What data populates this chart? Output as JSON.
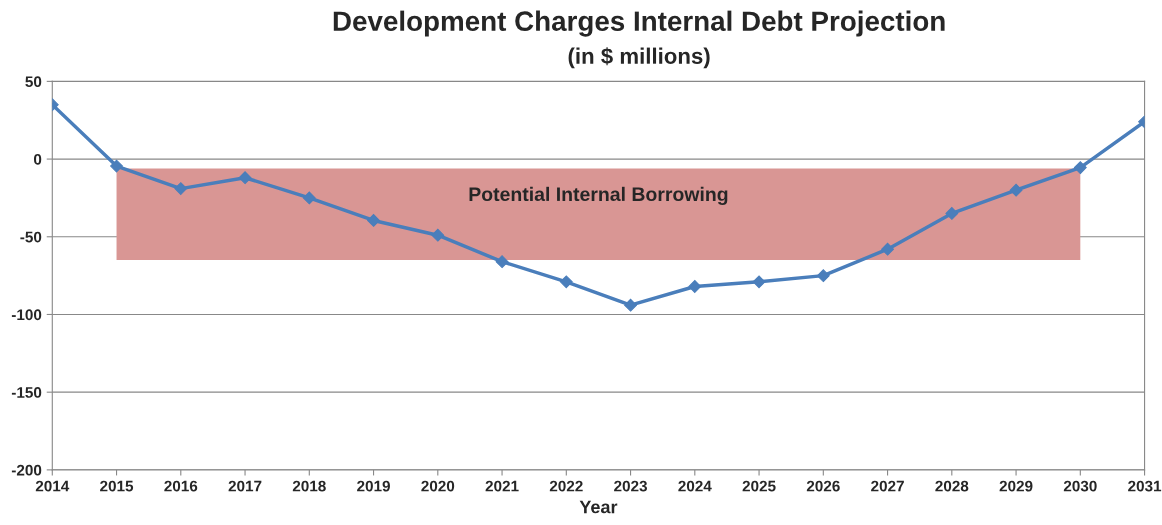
{
  "chart_data": {
    "type": "line",
    "title": "Development Charges Internal Debt Projection",
    "subtitle": "(in $ millions)",
    "xlabel": "Year",
    "categories": [
      "2014",
      "2015",
      "2016",
      "2017",
      "2018",
      "2019",
      "2020",
      "2021",
      "2022",
      "2023",
      "2024",
      "2025",
      "2026",
      "2027",
      "2028",
      "2029",
      "2030",
      "2031"
    ],
    "series": [
      {
        "color": "#4a7ebb",
        "values": [
          35,
          -4.5,
          -19,
          -12,
          -25,
          -39.5,
          -49,
          -66,
          -79,
          -94,
          -82,
          -79,
          -75,
          -58,
          -35,
          -20,
          -5.5,
          24
        ]
      }
    ],
    "ylim": [
      -200,
      50
    ],
    "yticks": [
      -200,
      -150,
      -100,
      -50,
      0,
      50
    ],
    "grid": "y",
    "marker": "diamond",
    "line_style": "solid",
    "bands": [
      {
        "axis": "y",
        "from": -65,
        "to": -6,
        "label": "Potential Internal Borrowing",
        "color": "#d99694"
      }
    ]
  }
}
